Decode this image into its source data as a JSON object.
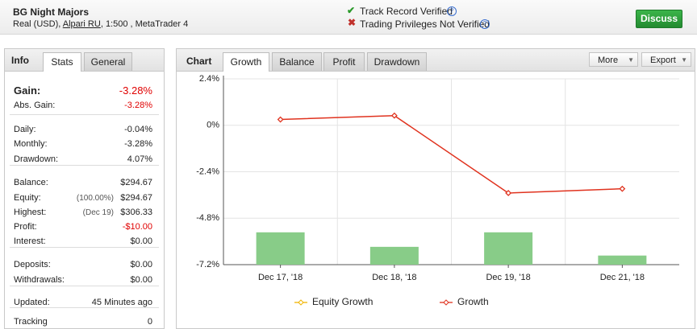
{
  "header": {
    "title": "BG Night Majors",
    "account_prefix": "Real (USD),",
    "broker": "Alpari RU",
    "account_suffix": ", 1:500 , MetaTrader 4",
    "verified": "Track Record Verified",
    "not_verified": "Trading Privileges Not Verified",
    "button": "Discuss"
  },
  "stats": {
    "tabs": [
      "Info",
      "Stats",
      "General"
    ],
    "groups": [
      [
        {
          "label": "Gain:",
          "value": "-3.28%",
          "color": "#e00000"
        },
        {
          "label": "Abs. Gain:",
          "value": "-3.28%",
          "color": "#e00000"
        }
      ],
      [
        {
          "label": "Daily:",
          "value": "-0.04%"
        },
        {
          "label": "Monthly:",
          "value": "-3.28%"
        },
        {
          "label": "Drawdown:",
          "value": "4.07%"
        }
      ],
      [
        {
          "label": "Balance:",
          "value": "$294.67"
        },
        {
          "label": "Equity:",
          "note": "(100.00%)",
          "value": "$294.67"
        },
        {
          "label": "Highest:",
          "note": "(Dec 19)",
          "value": "$306.33"
        },
        {
          "label": "Profit:",
          "value": "-$10.00",
          "color": "#e00000"
        },
        {
          "label": "Interest:",
          "value": "$0.00"
        }
      ],
      [
        {
          "label": "Deposits:",
          "value": "$0.00"
        },
        {
          "label": "Withdrawals:",
          "value": "$0.00"
        }
      ],
      [
        {
          "label": "Updated:",
          "value": "45 Minutes ago"
        }
      ],
      [
        {
          "label": "Tracking",
          "value": "0"
        }
      ]
    ]
  },
  "chart_panel": {
    "title": "Chart",
    "tabs": [
      "Growth",
      "Balance",
      "Profit",
      "Drawdown"
    ],
    "buttons": [
      "More",
      "Export"
    ]
  },
  "chart_data": {
    "type": "line",
    "categories": [
      "Dec 17, '18",
      "Dec 18, '18",
      "Dec 19, '18",
      "Dec 21, '18"
    ],
    "series": [
      {
        "type": "bar",
        "color": "#88cc88",
        "values": [
          -5.53,
          -6.28,
          -5.53,
          -6.73
        ]
      },
      {
        "name": "Equity Growth",
        "color": "#f0b400",
        "values": [
          null,
          null,
          null,
          null
        ]
      },
      {
        "name": "Growth",
        "color": "#e0321e",
        "values": [
          0.3,
          0.5,
          -3.5,
          -3.28
        ]
      }
    ],
    "ylim": [
      -7.2,
      2.4
    ],
    "yticks": [
      {
        "value": 2.4,
        "label": "2.4%"
      },
      {
        "value": 0,
        "label": "0%"
      },
      {
        "value": -2.4,
        "label": "-2.4%"
      },
      {
        "value": -4.8,
        "label": "-4.8%"
      },
      {
        "value": -7.2,
        "label": "-7.2%"
      }
    ],
    "grid": true,
    "legend": "bottom"
  }
}
